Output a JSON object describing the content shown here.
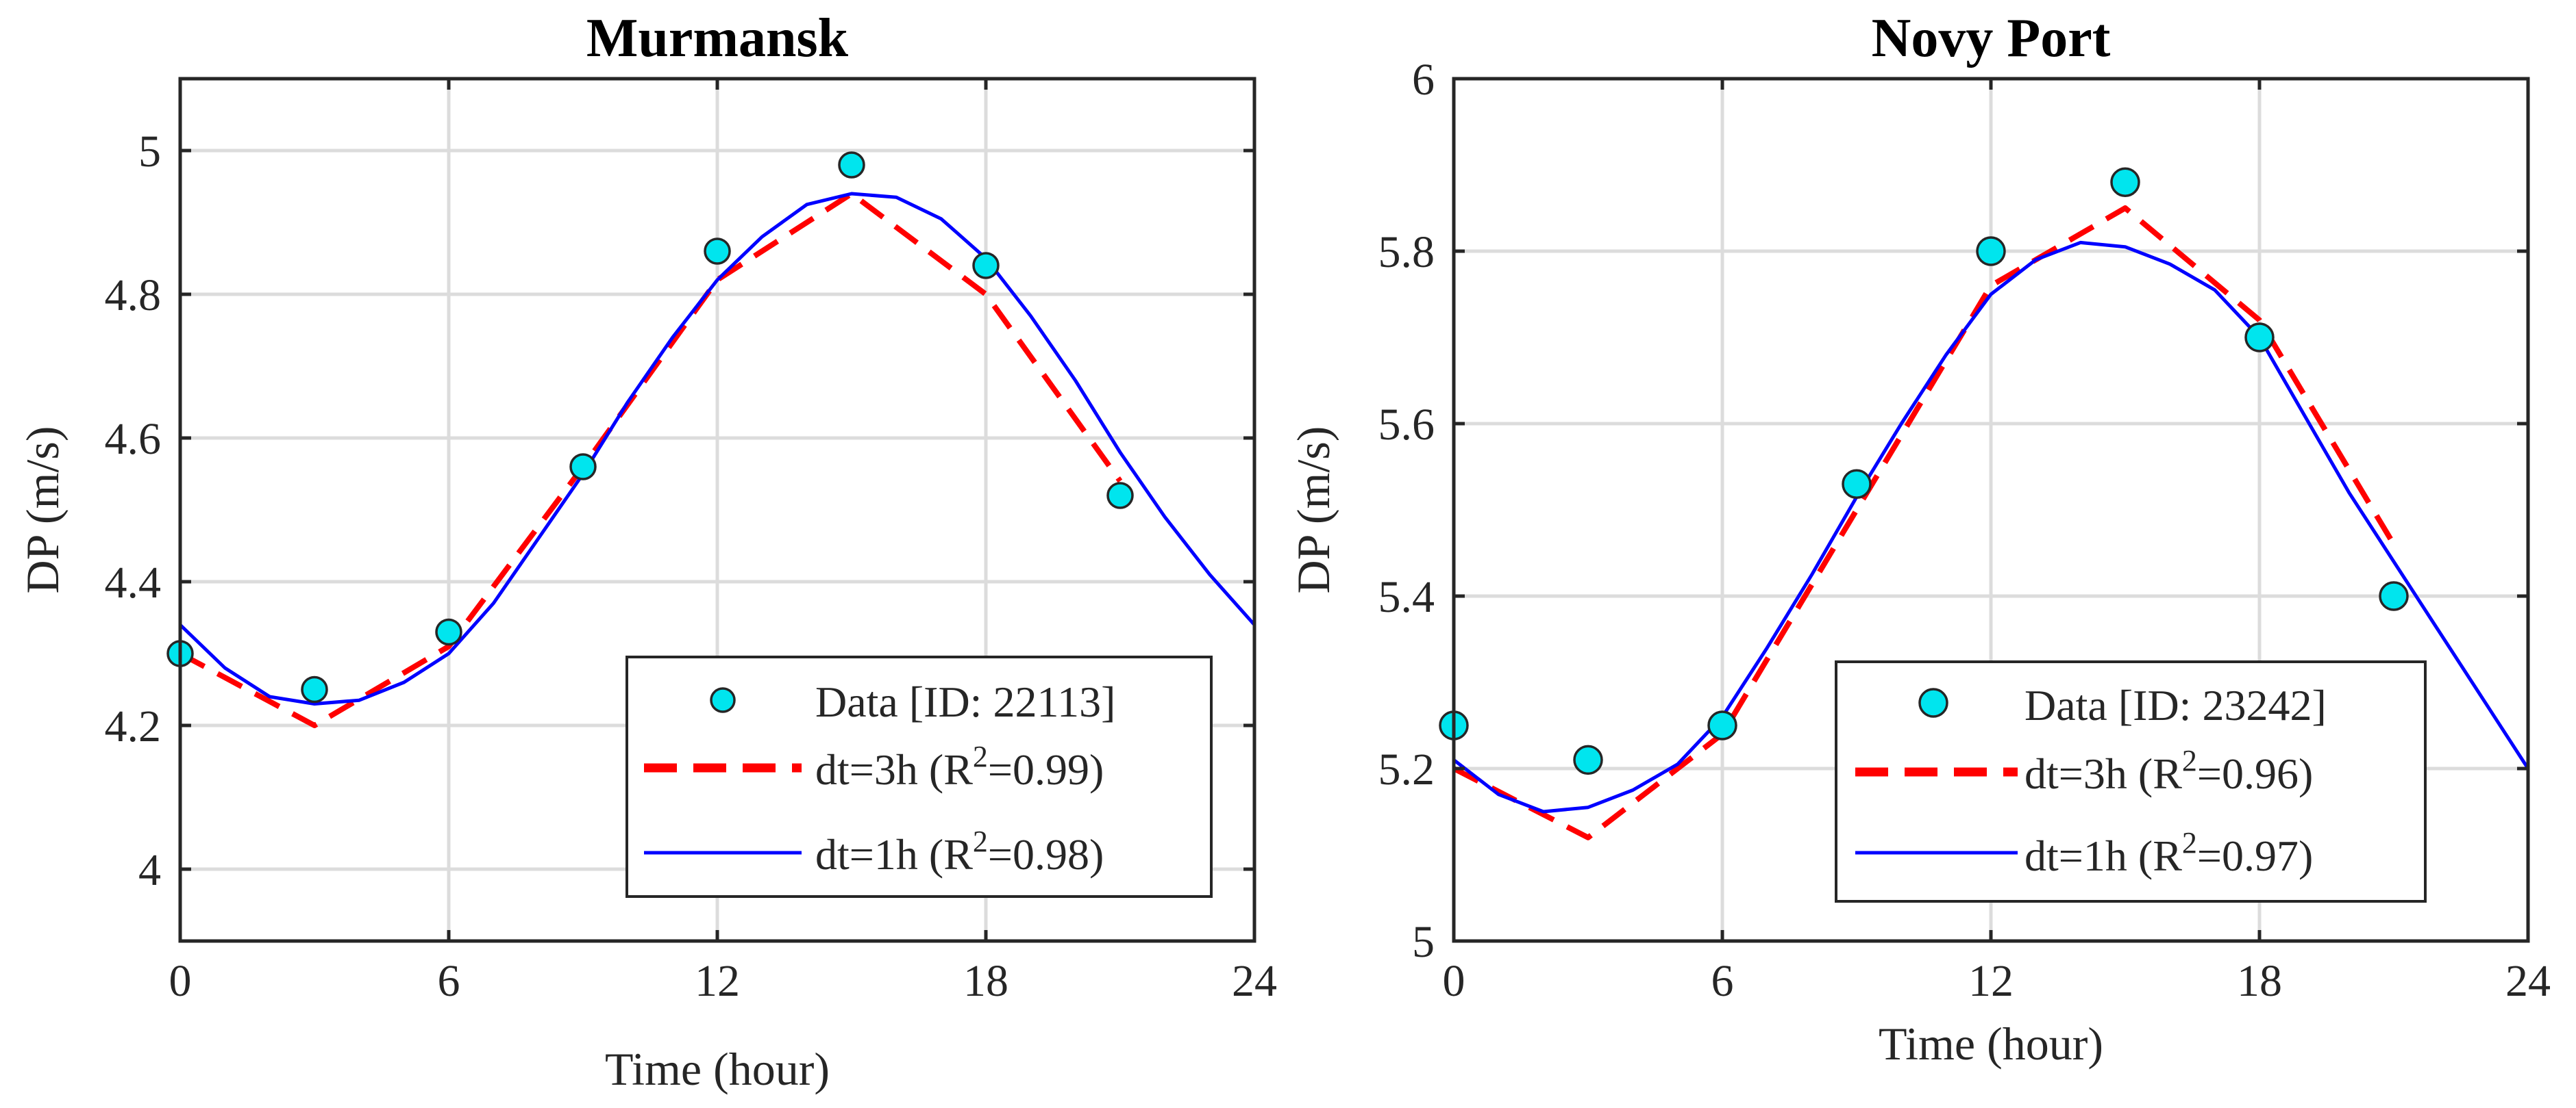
{
  "chart_data": [
    {
      "type": "line",
      "title": "Murmansk",
      "xlabel": "Time (hour)",
      "ylabel": "DP (m/s)",
      "xlim": [
        0,
        24
      ],
      "ylim": [
        3.9,
        5.1
      ],
      "xticks": [
        0,
        6,
        12,
        18,
        24
      ],
      "yticks": [
        4,
        4.2,
        4.4,
        4.6,
        4.8,
        5
      ],
      "xtick_labels": [
        "0",
        "6",
        "12",
        "18",
        "24"
      ],
      "ytick_labels": [
        "4",
        "4.2",
        "4.4",
        "4.6",
        "4.8",
        "5"
      ],
      "grid": true,
      "legend_position": "bottom-right",
      "series": [
        {
          "name": "Data [ID: 22113]",
          "kind": "markers",
          "color": "#00e5ee",
          "x": [
            0,
            3,
            6,
            9,
            12,
            15,
            18,
            21
          ],
          "y": [
            4.3,
            4.25,
            4.33,
            4.56,
            4.86,
            4.98,
            4.84,
            4.52
          ]
        },
        {
          "name": "dt=3h (R",
          "name_sup": "2",
          "name_end": "=0.99)",
          "kind": "dashed",
          "color": "#ff0000",
          "x": [
            0,
            3,
            6,
            9,
            12,
            15,
            18,
            21
          ],
          "y": [
            4.3,
            4.2,
            4.31,
            4.56,
            4.82,
            4.94,
            4.8,
            4.54
          ]
        },
        {
          "name": "dt=1h (R",
          "name_sup": "2",
          "name_end": "=0.98)",
          "kind": "solid",
          "color": "#0000ff",
          "x": [
            0,
            1,
            2,
            3,
            4,
            5,
            6,
            7,
            8,
            9,
            10,
            11,
            12,
            13,
            14,
            15,
            16,
            17,
            18,
            19,
            20,
            21,
            22,
            23,
            24
          ],
          "y": [
            4.34,
            4.28,
            4.24,
            4.23,
            4.235,
            4.26,
            4.3,
            4.37,
            4.46,
            4.55,
            4.65,
            4.74,
            4.82,
            4.88,
            4.925,
            4.94,
            4.935,
            4.905,
            4.85,
            4.77,
            4.68,
            4.58,
            4.49,
            4.41,
            4.34
          ]
        }
      ]
    },
    {
      "type": "line",
      "title": "Novy Port",
      "xlabel": "Time (hour)",
      "ylabel": "DP (m/s)",
      "xlim": [
        0,
        24
      ],
      "ylim": [
        5.0,
        6.0
      ],
      "xticks": [
        0,
        6,
        12,
        18,
        24
      ],
      "yticks": [
        5,
        5.2,
        5.4,
        5.6,
        5.8,
        6
      ],
      "xtick_labels": [
        "0",
        "6",
        "12",
        "18",
        "24"
      ],
      "ytick_labels": [
        "5",
        "5.2",
        "5.4",
        "5.6",
        "5.8",
        "6"
      ],
      "grid": true,
      "legend_position": "bottom-right",
      "series": [
        {
          "name": "Data [ID: 23242]",
          "kind": "markers",
          "color": "#00e5ee",
          "x": [
            0,
            3,
            6,
            9,
            12,
            15,
            18,
            21
          ],
          "y": [
            5.25,
            5.21,
            5.25,
            5.53,
            5.8,
            5.88,
            5.7,
            5.4
          ]
        },
        {
          "name": "dt=3h (R",
          "name_sup": "2",
          "name_end": "=0.96)",
          "kind": "dashed",
          "color": "#ff0000",
          "x": [
            0,
            3,
            6,
            9,
            12,
            15,
            18,
            21
          ],
          "y": [
            5.2,
            5.12,
            5.24,
            5.5,
            5.76,
            5.85,
            5.72,
            5.46
          ]
        },
        {
          "name": "dt=1h (R",
          "name_sup": "2",
          "name_end": "=0.97)",
          "kind": "solid",
          "color": "#0000ff",
          "x": [
            0,
            1,
            2,
            3,
            4,
            5,
            6,
            7,
            8,
            9,
            10,
            11,
            12,
            13,
            14,
            15,
            16,
            17,
            18,
            19,
            20,
            21,
            22,
            23,
            24
          ],
          "y": [
            5.21,
            5.17,
            5.15,
            5.155,
            5.175,
            5.205,
            5.26,
            5.34,
            5.425,
            5.515,
            5.6,
            5.68,
            5.75,
            5.79,
            5.81,
            5.805,
            5.785,
            5.755,
            5.7,
            5.61,
            5.52,
            5.44,
            5.36,
            5.28,
            5.2
          ]
        }
      ]
    }
  ]
}
